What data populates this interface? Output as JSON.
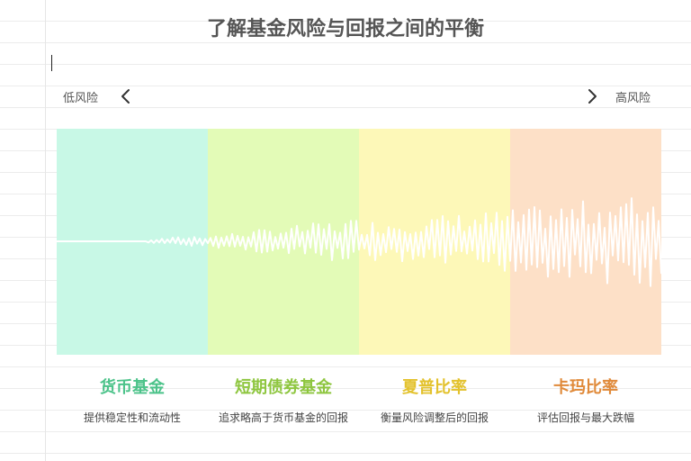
{
  "title": "了解基金风险与回报之间的平衡",
  "risk_scale": {
    "low_label": "低风险",
    "high_label": "高风险"
  },
  "categories": [
    {
      "name": "货币基金",
      "description": "提供稳定性和流动性",
      "band_color": "#c8f8e6",
      "title_color": "#4cc38a"
    },
    {
      "name": "短期债券基金",
      "description": "追求略高于货币基金的回报",
      "band_color": "#e3fbb7",
      "title_color": "#8ec63f"
    },
    {
      "name": "夏普比率",
      "description": "衡量风险调整后的回报",
      "band_color": "#fdf8b8",
      "title_color": "#e3c22d"
    },
    {
      "name": "卡玛比率",
      "description": "评估回报与最大跌幅",
      "band_color": "#fde0c7",
      "title_color": "#e08a3a"
    }
  ],
  "wave_color": "#ffffff"
}
